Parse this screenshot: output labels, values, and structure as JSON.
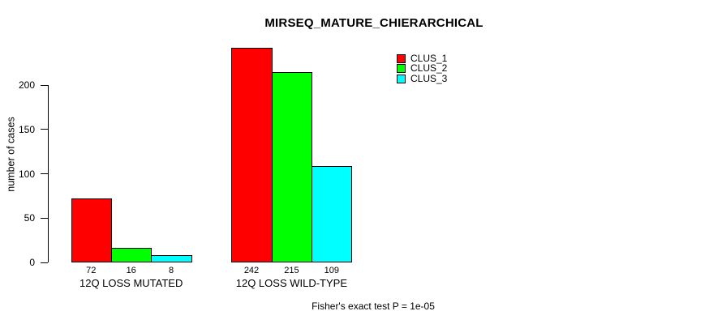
{
  "figure": {
    "title": "MIRSEQ_MATURE_CHIERARCHICAL",
    "y_axis_label": "number of cases",
    "annotation": "Fisher's exact test P = 1e-05"
  },
  "chart_data": {
    "type": "bar",
    "title": "MIRSEQ_MATURE_CHIERARCHICAL",
    "xlabel": "",
    "ylabel": "number of cases",
    "categories": [
      "12Q LOSS MUTATED",
      "12Q LOSS WILD-TYPE"
    ],
    "series": [
      {
        "name": "CLUS_1",
        "color": "#FF0000",
        "values": [
          72,
          242
        ]
      },
      {
        "name": "CLUS_2",
        "color": "#00FF00",
        "values": [
          16,
          215
        ]
      },
      {
        "name": "CLUS_3",
        "color": "#00FFFF",
        "values": [
          8,
          109
        ]
      }
    ],
    "bar_value_labels": [
      [
        "72",
        "16",
        "8"
      ],
      [
        "242",
        "215",
        "109"
      ]
    ],
    "yticks": [
      0,
      50,
      100,
      150,
      200
    ],
    "ylim": [
      0,
      245
    ],
    "grid": false,
    "legend": {
      "position": "top-right",
      "entries": [
        "CLUS_1",
        "CLUS_2",
        "CLUS_3"
      ]
    },
    "annotation": "Fisher's exact test P = 1e-05"
  }
}
